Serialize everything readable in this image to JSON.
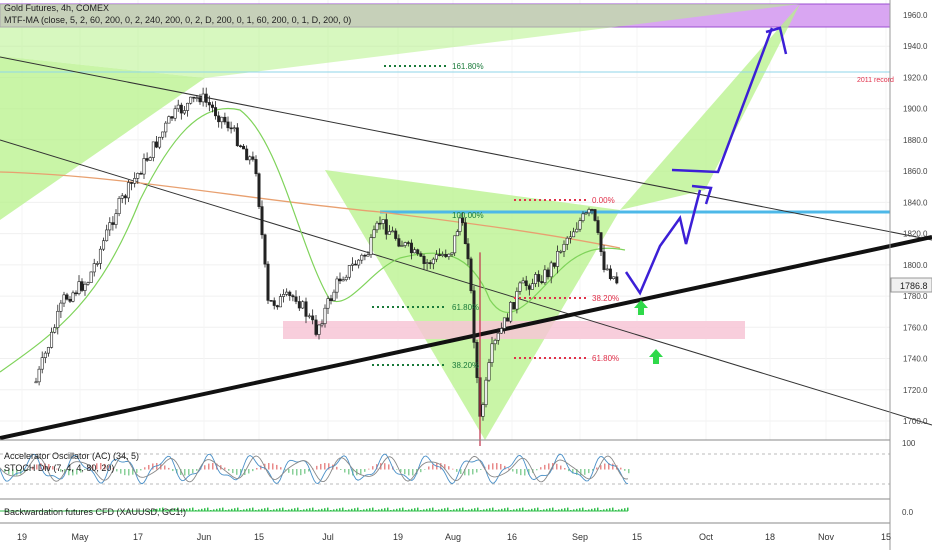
{
  "header": {
    "title": "Gold Futures, 4h, COMEX",
    "indicator": "MTF-MA (close, 5, 2, 60, 200, 0, 2, 240, 200, 0, 2, D, 200, 0, 1, 60, 200, 0, 1, D, 200, 0)"
  },
  "panels": {
    "ac_label": "Accelerator Oscillator (AC) (34, 5)",
    "stoch_label": "STOCH Div (7, 4, 4, 80, 20)",
    "bw_label": "Backwardation futures CFD (XAUUSD, GC1!)",
    "osc_scale_top": "100",
    "bw_scale": "0.0"
  },
  "annotations": {
    "record_label": "2011 record",
    "fib_161": "161.80%",
    "fib_100": "100.00%",
    "fib_618_left": "61.80%",
    "fib_382_left": "38.20%",
    "fib_000": "0.00%",
    "fib_382_right": "38.20%",
    "fib_618_right": "61.80%"
  },
  "last_price": "1786.8",
  "colors": {
    "harmonic_fill": "#b7f28a",
    "resistance_zone": "#d9a6f2",
    "support_zone": "#f7c6d6",
    "projection": "#3c1fd6",
    "horizontal_level": "#4db8e8",
    "trendline": "#111111",
    "ma_green": "#7fd35a",
    "ma_orange": "#e8a070",
    "fib_green": "#1a7a3a",
    "fib_red": "#e0304a",
    "up_arrow": "#2fd94a"
  },
  "chart_data": {
    "type": "candlestick",
    "instrument": "Gold Futures",
    "timeframe": "4h",
    "y_axis_ticks": [
      1960,
      1940,
      1920,
      1900,
      1880,
      1860,
      1840,
      1820,
      1800,
      1780,
      1760,
      1740,
      1720,
      1700
    ],
    "ylim": [
      1688,
      1968
    ],
    "x_axis_ticks": [
      "19",
      "May",
      "17",
      "Jun",
      "15",
      "Jul",
      "19",
      "Aug",
      "16",
      "Sep",
      "15",
      "Oct",
      "18",
      "Nov",
      "15"
    ],
    "last_price": 1786.8,
    "price_path": [
      {
        "date": "Apr 19",
        "price": 1725
      },
      {
        "date": "Apr 26",
        "price": 1778
      },
      {
        "date": "May 3",
        "price": 1790
      },
      {
        "date": "May 10",
        "price": 1835
      },
      {
        "date": "May 17",
        "price": 1865
      },
      {
        "date": "May 24",
        "price": 1895
      },
      {
        "date": "May 31",
        "price": 1908
      },
      {
        "date": "Jun 7",
        "price": 1890
      },
      {
        "date": "Jun 14",
        "price": 1862
      },
      {
        "date": "Jun 17",
        "price": 1775
      },
      {
        "date": "Jun 24",
        "price": 1780
      },
      {
        "date": "Jun 29",
        "price": 1758
      },
      {
        "date": "Jul 5",
        "price": 1792
      },
      {
        "date": "Jul 12",
        "price": 1808
      },
      {
        "date": "Jul 15",
        "price": 1828
      },
      {
        "date": "Jul 26",
        "price": 1800
      },
      {
        "date": "Aug 2",
        "price": 1810
      },
      {
        "date": "Aug 4",
        "price": 1830
      },
      {
        "date": "Aug 6",
        "price": 1808
      },
      {
        "date": "Aug 9",
        "price": 1700
      },
      {
        "date": "Aug 12",
        "price": 1745
      },
      {
        "date": "Aug 19",
        "price": 1785
      },
      {
        "date": "Aug 26",
        "price": 1795
      },
      {
        "date": "Aug 30",
        "price": 1815
      },
      {
        "date": "Sep 3",
        "price": 1828
      },
      {
        "date": "Sep 6",
        "price": 1834
      },
      {
        "date": "Sep 9",
        "price": 1800
      },
      {
        "date": "Sep 13",
        "price": 1787
      }
    ],
    "levels": {
      "resistance_zone": [
        1952,
        1966
      ],
      "record_2011": 1923,
      "fib_161_8": 1915,
      "horizontal_level": 1835,
      "support_zone": [
        1752,
        1764
      ],
      "fib_100": 1835,
      "fib_61_8_left": 1770,
      "fib_38_2_left": 1736,
      "fib_0": 1848,
      "fib_38_2_right": 1778,
      "fib_61_8_right": 1740
    },
    "projection_path": [
      {
        "date": "Sep 13",
        "price": 1778
      },
      {
        "date": "Sep 19",
        "price": 1816
      },
      {
        "date": "Sep 22",
        "price": 1800
      },
      {
        "date": "Sep 27",
        "price": 1838
      },
      {
        "date": "Sep 30",
        "price": 1818
      },
      {
        "date": "Oct 4",
        "price": 1848
      },
      {
        "date": "Oct 1",
        "price": 1860
      },
      {
        "date": "Oct 10",
        "price": 1862
      },
      {
        "date": "Oct 23",
        "price": 1950
      },
      {
        "date": "Oct 25",
        "price": 1935
      }
    ]
  }
}
